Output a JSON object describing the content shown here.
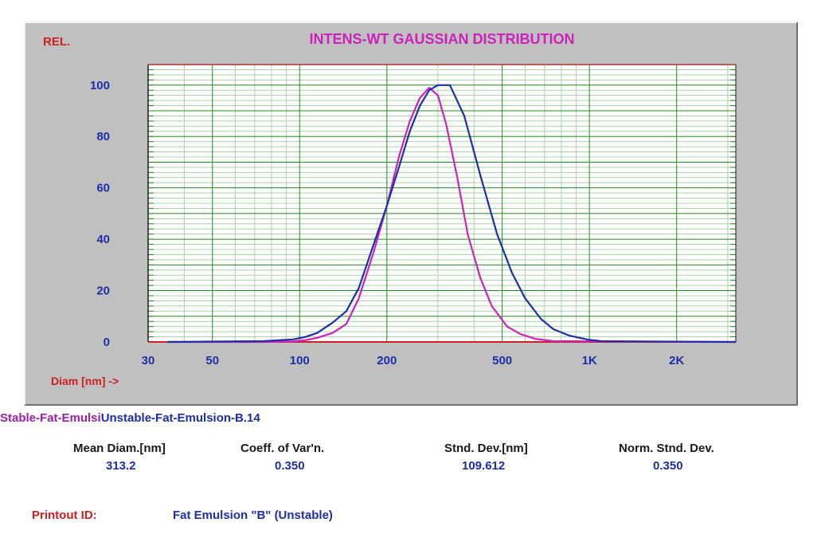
{
  "chart_data": {
    "type": "line",
    "title": "INTENS-WT GAUSSIAN DISTRIBUTION",
    "ylabel": "REL.",
    "xlabel": "Diam [nm] ->",
    "x_scale": "log",
    "xlim": [
      30,
      3200
    ],
    "ylim": [
      0,
      108
    ],
    "grid": true,
    "legend": "none",
    "x_ticks": [
      {
        "value": 30,
        "label": "30"
      },
      {
        "value": 50,
        "label": "50"
      },
      {
        "value": 100,
        "label": "100"
      },
      {
        "value": 200,
        "label": "200"
      },
      {
        "value": 500,
        "label": "500"
      },
      {
        "value": 1000,
        "label": "1K"
      },
      {
        "value": 2000,
        "label": "2K"
      }
    ],
    "y_ticks": [
      {
        "value": 0,
        "label": "0"
      },
      {
        "value": 20,
        "label": "20"
      },
      {
        "value": 40,
        "label": "40"
      },
      {
        "value": 60,
        "label": "60"
      },
      {
        "value": 80,
        "label": "80"
      },
      {
        "value": 100,
        "label": "100"
      }
    ],
    "series": [
      {
        "color": "#cc22bb",
        "x": [
          35,
          75,
          95,
          105,
          115,
          130,
          145,
          160,
          180,
          200,
          220,
          240,
          260,
          280,
          300,
          320,
          350,
          380,
          420,
          460,
          520,
          580,
          650,
          750,
          3200
        ],
        "y": [
          0,
          0,
          0.2,
          0.7,
          1.6,
          3.5,
          7,
          17,
          35,
          53,
          72,
          86,
          95,
          99,
          96,
          85,
          64,
          42,
          25,
          14,
          6,
          3,
          1.2,
          0.3,
          0
        ]
      },
      {
        "color": "#1c2fa8",
        "x": [
          35,
          75,
          95,
          105,
          115,
          130,
          145,
          160,
          180,
          200,
          220,
          240,
          260,
          280,
          300,
          330,
          370,
          420,
          480,
          540,
          600,
          680,
          750,
          850,
          1000,
          1100,
          3200
        ],
        "y": [
          0,
          0.3,
          1,
          2,
          3.5,
          7.5,
          12,
          21,
          38,
          53,
          68,
          82,
          92,
          98,
          100,
          100,
          88,
          65,
          42,
          27,
          17,
          9,
          5,
          2.5,
          0.8,
          0.3,
          0
        ]
      }
    ]
  },
  "samples": {
    "stable_name": "Stable-Fat-Emulsi",
    "unstable_name": "Unstable-Fat-Emulsion-B.14"
  },
  "stats": [
    {
      "label": "Mean Diam.[nm]",
      "value": "313.2"
    },
    {
      "label": "Coeff. of Var'n.",
      "value": "0.350"
    },
    {
      "label": "Stnd. Dev.[nm]",
      "value": "109.612"
    },
    {
      "label": "Norm. Stnd. Dev.",
      "value": "0.350"
    }
  ],
  "printout": {
    "label": "Printout ID:",
    "value": "Fat Emulsion \"B\" (Unstable)"
  },
  "colors": {
    "panel_bg": "#c0c0c0",
    "plot_bg": "#ffffff",
    "grid_major": "#1f8c1f",
    "grid_minor": "#a8d4a8",
    "axis_text": "#1c2fa8",
    "title": "#cc22bb",
    "rel_label": "#cc1f1f"
  }
}
